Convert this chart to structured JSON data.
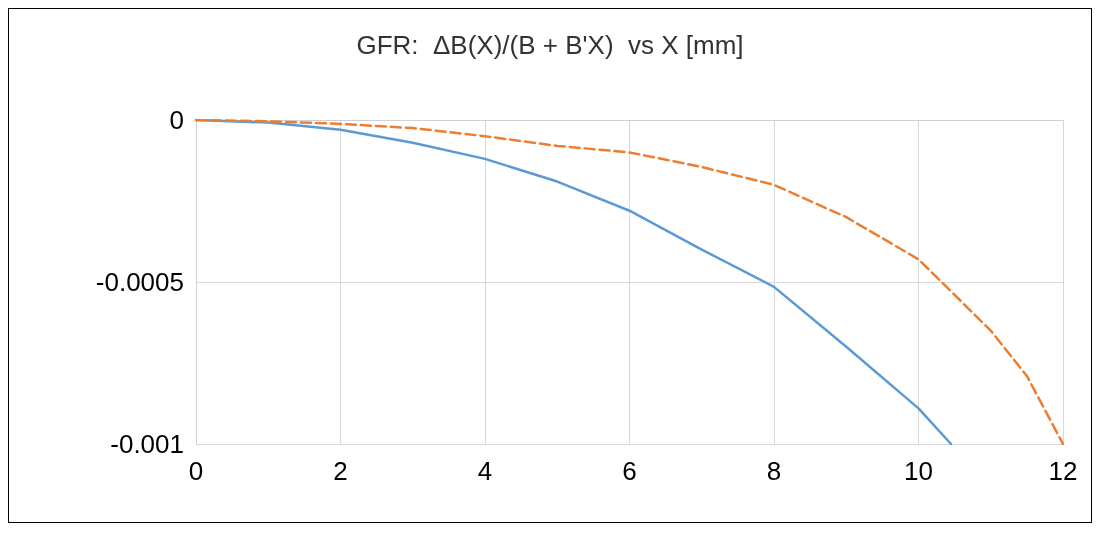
{
  "chart_data": {
    "type": "line",
    "title": "GFR:  ΔB(X)/(B + B'X)  vs X [mm]",
    "series": [
      {
        "color": "#5b9bd5",
        "line_style": "solid",
        "x": [
          0,
          1,
          2,
          3,
          4,
          5,
          6,
          7,
          8,
          9,
          10,
          10.45
        ],
        "values": [
          0,
          -8e-06,
          -3e-05,
          -7e-05,
          -0.00012,
          -0.00019,
          -0.00028,
          -0.0004,
          -0.000515,
          -0.0007,
          -0.00089,
          -0.001
        ]
      },
      {
        "color": "#ed7d31",
        "line_style": "dashed",
        "x": [
          0,
          1,
          2,
          3,
          4,
          5,
          6,
          7,
          8,
          9,
          10,
          11,
          11.5,
          12
        ],
        "values": [
          0,
          -4e-06,
          -1.2e-05,
          -2.5e-05,
          -5e-05,
          -8e-05,
          -0.0001,
          -0.000145,
          -0.0002,
          -0.0003,
          -0.00043,
          -0.00065,
          -0.00079,
          -0.001
        ]
      }
    ],
    "xlim": [
      0,
      12
    ],
    "xticks": [
      0,
      2,
      4,
      6,
      8,
      10,
      12
    ],
    "ylim": [
      -0.001,
      0
    ],
    "yticks": [
      -0.001,
      -0.0005,
      0
    ],
    "grid": true,
    "marker": "none"
  }
}
